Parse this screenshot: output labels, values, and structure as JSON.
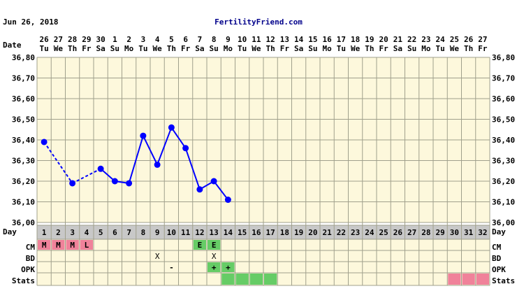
{
  "header": {
    "date": "Jun 26, 2018",
    "site": "FertilityFriend.com"
  },
  "labels": {
    "date_row": "Date",
    "day_row": "Day",
    "cm_row": "CM",
    "bd_row": "BD",
    "opk_row": "OPK",
    "stats_row": "Stats"
  },
  "colors": {
    "background": "#ffffff",
    "chart_bg": "#fdf8dc",
    "grid": "#a0a08c",
    "line": "#0000ff",
    "header_text": "#00008b",
    "day_row_bg": "#c8c8c8",
    "cm_fertile": "#66cc66",
    "cm_nonfertile": "#f0829a",
    "opk_positive": "#66cc66",
    "stats_green": "#66cc66",
    "stats_pink": "#f0829a"
  },
  "dates": [
    {
      "d": "26",
      "w": "Tu"
    },
    {
      "d": "27",
      "w": "We"
    },
    {
      "d": "28",
      "w": "Th"
    },
    {
      "d": "29",
      "w": "Fr"
    },
    {
      "d": "30",
      "w": "Sa"
    },
    {
      "d": "1",
      "w": "Su"
    },
    {
      "d": "2",
      "w": "Mo"
    },
    {
      "d": "3",
      "w": "Tu"
    },
    {
      "d": "4",
      "w": "We"
    },
    {
      "d": "5",
      "w": "Th"
    },
    {
      "d": "6",
      "w": "Fr"
    },
    {
      "d": "7",
      "w": "Sa"
    },
    {
      "d": "8",
      "w": "Su"
    },
    {
      "d": "9",
      "w": "Mo"
    },
    {
      "d": "10",
      "w": "Tu"
    },
    {
      "d": "11",
      "w": "We"
    },
    {
      "d": "12",
      "w": "Th"
    },
    {
      "d": "13",
      "w": "Fr"
    },
    {
      "d": "14",
      "w": "Sa"
    },
    {
      "d": "15",
      "w": "Su"
    },
    {
      "d": "16",
      "w": "Mo"
    },
    {
      "d": "17",
      "w": "Tu"
    },
    {
      "d": "18",
      "w": "We"
    },
    {
      "d": "19",
      "w": "Th"
    },
    {
      "d": "20",
      "w": "Fr"
    },
    {
      "d": "21",
      "w": "Sa"
    },
    {
      "d": "22",
      "w": "Su"
    },
    {
      "d": "23",
      "w": "Mo"
    },
    {
      "d": "24",
      "w": "Tu"
    },
    {
      "d": "25",
      "w": "We"
    },
    {
      "d": "26",
      "w": "Th"
    },
    {
      "d": "27",
      "w": "Fr"
    }
  ],
  "chart_data": {
    "type": "line",
    "x": [
      1,
      2,
      3,
      4,
      5,
      6,
      7,
      8,
      9,
      10,
      11,
      12,
      13,
      14,
      15,
      16,
      17,
      18,
      19,
      20,
      21,
      22,
      23,
      24,
      25,
      26,
      27,
      28,
      29,
      30,
      31,
      32
    ],
    "ylim": [
      36.0,
      36.8
    ],
    "yticks": [
      "36,00",
      "36,10",
      "36,20",
      "36,30",
      "36,40",
      "36,50",
      "36,60",
      "36,70",
      "36,80"
    ],
    "grid": true,
    "series": [
      {
        "temps": [
          {
            "day": 1,
            "value": 36.39
          },
          {
            "day": 3,
            "value": 36.19
          },
          {
            "day": 5,
            "value": 36.26
          },
          {
            "day": 6,
            "value": 36.2
          },
          {
            "day": 7,
            "value": 36.19
          },
          {
            "day": 8,
            "value": 36.42
          },
          {
            "day": 9,
            "value": 36.28
          },
          {
            "day": 10,
            "value": 36.46
          },
          {
            "day": 11,
            "value": 36.36
          },
          {
            "day": 12,
            "value": 36.16
          },
          {
            "day": 13,
            "value": 36.2
          },
          {
            "day": 14,
            "value": 36.11
          }
        ],
        "dashed_segments": [
          [
            1,
            3
          ],
          [
            3,
            5
          ]
        ]
      }
    ],
    "cm": [
      {
        "day": 1,
        "text": "M",
        "kind": "nonfertile"
      },
      {
        "day": 2,
        "text": "M",
        "kind": "nonfertile"
      },
      {
        "day": 3,
        "text": "M",
        "kind": "nonfertile"
      },
      {
        "day": 4,
        "text": "L",
        "kind": "nonfertile"
      },
      {
        "day": 12,
        "text": "E",
        "kind": "fertile"
      },
      {
        "day": 13,
        "text": "E",
        "kind": "fertile"
      }
    ],
    "bd": [
      {
        "day": 9,
        "text": "X"
      },
      {
        "day": 13,
        "text": "X"
      }
    ],
    "opk": [
      {
        "day": 10,
        "text": "-",
        "kind": "negative"
      },
      {
        "day": 13,
        "text": "+",
        "kind": "positive"
      },
      {
        "day": 14,
        "text": "+",
        "kind": "positive"
      }
    ],
    "stats": [
      {
        "day": 14,
        "kind": "green"
      },
      {
        "day": 15,
        "kind": "green"
      },
      {
        "day": 16,
        "kind": "green"
      },
      {
        "day": 17,
        "kind": "green"
      },
      {
        "day": 30,
        "kind": "pink"
      },
      {
        "day": 31,
        "kind": "pink"
      },
      {
        "day": 32,
        "kind": "pink"
      }
    ]
  }
}
